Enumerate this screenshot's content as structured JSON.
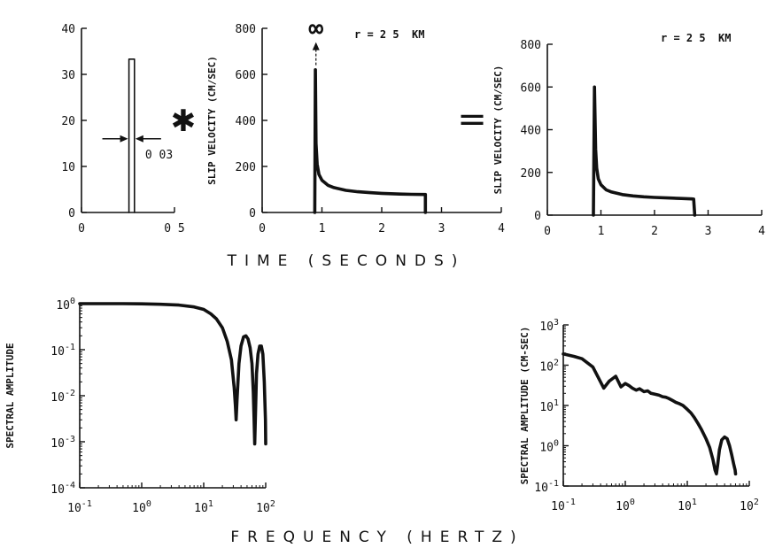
{
  "chart_data": [
    {
      "type": "line",
      "id": "boxcar",
      "xlim": [
        0,
        0.5
      ],
      "ylim": [
        0,
        40
      ],
      "xticks": [
        {
          "v": 0,
          "label": "0"
        },
        {
          "v": 0.5,
          "label": "0 5"
        }
      ],
      "yticks": [
        {
          "v": 0,
          "label": "0"
        },
        {
          "v": 10,
          "label": "10"
        },
        {
          "v": 20,
          "label": "20"
        },
        {
          "v": 30,
          "label": "30"
        },
        {
          "v": 40,
          "label": "40"
        }
      ],
      "series": [
        {
          "x": [
            0.255,
            0.255,
            0.285,
            0.285
          ],
          "y": [
            0,
            33.3,
            33.3,
            0
          ]
        }
      ],
      "annotation": {
        "text": "0 03",
        "arrow_y": 16,
        "left_x": 0.255,
        "right_x": 0.285
      }
    },
    {
      "type": "line",
      "id": "slip-input",
      "xlim": [
        0,
        4
      ],
      "ylim": [
        0,
        800
      ],
      "ylabel": "SLIP VELOCITY (CM/SEC)",
      "xticks": [
        {
          "v": 0,
          "label": "0"
        },
        {
          "v": 1,
          "label": "1"
        },
        {
          "v": 2,
          "label": "2"
        },
        {
          "v": 3,
          "label": "3"
        },
        {
          "v": 4,
          "label": "4"
        }
      ],
      "yticks": [
        {
          "v": 0,
          "label": "0"
        },
        {
          "v": 200,
          "label": "200"
        },
        {
          "v": 400,
          "label": "400"
        },
        {
          "v": 600,
          "label": "600"
        },
        {
          "v": 800,
          "label": "800"
        }
      ],
      "series": [
        {
          "x": [
            0.88,
            0.89,
            0.9,
            0.92,
            0.95,
            1.0,
            1.1,
            1.2,
            1.4,
            1.6,
            1.8,
            2.0,
            2.3,
            2.5,
            2.72,
            2.73,
            2.73
          ],
          "y": [
            0,
            620,
            300,
            210,
            165,
            140,
            118,
            108,
            96,
            90,
            86,
            83,
            80,
            79,
            78,
            78,
            0
          ]
        }
      ],
      "annotation": {
        "infinity": "∞",
        "r_label": "r = 2 5  KM",
        "arrow_x": 0.9,
        "arrow_from": 640,
        "arrow_to": 740
      }
    },
    {
      "type": "line",
      "id": "slip-convolved",
      "xlim": [
        0,
        4
      ],
      "ylim": [
        0,
        800
      ],
      "ylabel": "SLIP VELOCITY (CM/SEC)",
      "xticks": [
        {
          "v": 0,
          "label": "0"
        },
        {
          "v": 1,
          "label": "1"
        },
        {
          "v": 2,
          "label": "2"
        },
        {
          "v": 3,
          "label": "3"
        },
        {
          "v": 4,
          "label": "4"
        }
      ],
      "yticks": [
        {
          "v": 0,
          "label": "0"
        },
        {
          "v": 200,
          "label": "200"
        },
        {
          "v": 400,
          "label": "400"
        },
        {
          "v": 600,
          "label": "600"
        },
        {
          "v": 800,
          "label": "800"
        }
      ],
      "series": [
        {
          "x": [
            0.86,
            0.88,
            0.9,
            0.92,
            0.95,
            1.0,
            1.1,
            1.2,
            1.4,
            1.6,
            1.8,
            2.0,
            2.3,
            2.5,
            2.7,
            2.73,
            2.75
          ],
          "y": [
            0,
            600,
            310,
            220,
            170,
            142,
            118,
            108,
            96,
            90,
            86,
            83,
            80,
            78,
            76,
            75,
            0
          ]
        }
      ],
      "annotation": {
        "r_label": "r = 2 5  KM"
      }
    },
    {
      "type": "line",
      "id": "spectrum-boxcar",
      "xscale": "log",
      "yscale": "log",
      "xlim": [
        0.1,
        100
      ],
      "ylim": [
        0.0001,
        1
      ],
      "ylabel": "SPECTRAL AMPLITUDE",
      "xticks": [
        {
          "v": 0.1,
          "base": "10",
          "exp": "-1"
        },
        {
          "v": 1,
          "base": "10",
          "exp": "0"
        },
        {
          "v": 10,
          "base": "10",
          "exp": "1"
        },
        {
          "v": 100,
          "base": "10",
          "exp": "2"
        }
      ],
      "yticks": [
        {
          "v": 0.0001,
          "base": "10",
          "exp": "-4"
        },
        {
          "v": 0.001,
          "base": "10",
          "exp": "-3"
        },
        {
          "v": 0.01,
          "base": "10",
          "exp": "-2"
        },
        {
          "v": 0.1,
          "base": "10",
          "exp": "-1"
        },
        {
          "v": 1,
          "base": "10",
          "exp": "0"
        }
      ],
      "series": [
        {
          "x": [
            0.1,
            0.5,
            1,
            2,
            4,
            7,
            10,
            13,
            16,
            20,
            24,
            28,
            31,
            32.5,
            33.3,
            34.5,
            37,
            40,
            44,
            48,
            52,
            56,
            60,
            63,
            65,
            66.6,
            68,
            71,
            75,
            80,
            85,
            90,
            95,
            99,
            100
          ],
          "y": [
            1,
            0.998,
            0.99,
            0.97,
            0.93,
            0.85,
            0.75,
            0.6,
            0.47,
            0.3,
            0.15,
            0.06,
            0.015,
            0.006,
            0.003,
            0.008,
            0.05,
            0.12,
            0.19,
            0.2,
            0.17,
            0.11,
            0.05,
            0.012,
            0.003,
            0.0009,
            0.003,
            0.03,
            0.08,
            0.12,
            0.12,
            0.08,
            0.02,
            0.003,
            0.0009
          ]
        }
      ]
    },
    {
      "type": "line",
      "id": "spectrum-convolved",
      "xscale": "log",
      "yscale": "log",
      "xlim": [
        0.1,
        100
      ],
      "ylim": [
        0.1,
        1000
      ],
      "ylabel": "SPECTRAL AMPLITUDE (CM-SEC)",
      "xticks": [
        {
          "v": 0.1,
          "base": "10",
          "exp": "-1"
        },
        {
          "v": 1,
          "base": "10",
          "exp": "0"
        },
        {
          "v": 10,
          "base": "10",
          "exp": "1"
        },
        {
          "v": 100,
          "base": "10",
          "exp": "2"
        }
      ],
      "yticks": [
        {
          "v": 0.1,
          "base": "10",
          "exp": "-1"
        },
        {
          "v": 1,
          "base": "10",
          "exp": "0"
        },
        {
          "v": 10,
          "base": "10",
          "exp": "1"
        },
        {
          "v": 100,
          "base": "10",
          "exp": "2"
        },
        {
          "v": 1000,
          "base": "10",
          "exp": "3"
        }
      ],
      "series": [
        {
          "x": [
            0.1,
            0.15,
            0.2,
            0.3,
            0.45,
            0.55,
            0.7,
            0.85,
            1.0,
            1.15,
            1.3,
            1.5,
            1.7,
            2.0,
            2.3,
            2.6,
            3.0,
            3.5,
            4.0,
            4.5,
            5.0,
            5.7,
            6.5,
            7.5,
            8.5,
            10,
            11.5,
            13,
            15,
            17,
            20,
            23,
            26,
            28,
            29.5,
            31,
            33,
            36,
            40,
            44,
            48,
            52,
            56,
            59,
            60
          ],
          "y": [
            190,
            165,
            145,
            90,
            27,
            40,
            53,
            29,
            35,
            31,
            27,
            24,
            26,
            22,
            23,
            20,
            19,
            18,
            16.5,
            16,
            15,
            13.5,
            12,
            11,
            10,
            8,
            6.5,
            5,
            3.5,
            2.5,
            1.5,
            0.9,
            0.45,
            0.25,
            0.2,
            0.35,
            0.8,
            1.4,
            1.65,
            1.5,
            1.0,
            0.6,
            0.35,
            0.25,
            0.2
          ]
        }
      ]
    }
  ],
  "labels": {
    "time_axis": "TIME   (SECONDS)",
    "frequency_axis": "FREQUENCY   (HERTZ)",
    "convolve_symbol": "✱",
    "equals_symbol": "="
  }
}
